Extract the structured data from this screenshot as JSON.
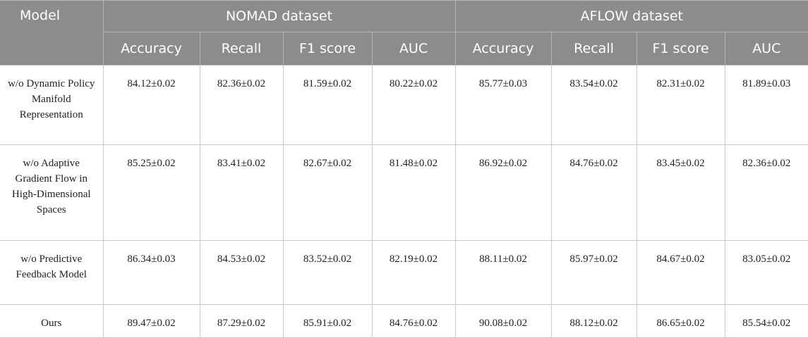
{
  "headers": {
    "model": "Model",
    "group1": "NOMAD dataset",
    "group2": "AFLOW dataset",
    "metrics": [
      "Accuracy",
      "Recall",
      "F1 score",
      "AUC",
      "Accuracy",
      "Recall",
      "F1 score",
      "AUC"
    ]
  },
  "rows": [
    {
      "model": "w/o Dynamic Policy Manifold Representation",
      "values": [
        "84.12±0.02",
        "82.36±0.02",
        "81.59±0.02",
        "80.22±0.02",
        "85.77±0.03",
        "83.54±0.02",
        "82.31±0.02",
        "81.89±0.03"
      ]
    },
    {
      "model": "w/o Adaptive Gradient Flow in High-Dimensional Spaces",
      "values": [
        "85.25±0.02",
        "83.41±0.02",
        "82.67±0.02",
        "81.48±0.02",
        "86.92±0.02",
        "84.76±0.02",
        "83.45±0.02",
        "82.36±0.02"
      ]
    },
    {
      "model": "w/o Predictive Feedback Model",
      "values": [
        "86.34±0.03",
        "84.53±0.02",
        "83.52±0.02",
        "82.19±0.02",
        "88.11±0.02",
        "85.97±0.02",
        "84.67±0.02",
        "83.05±0.02"
      ]
    },
    {
      "model": "Ours",
      "values": [
        "89.47±0.02",
        "87.29±0.02",
        "85.91±0.02",
        "84.76±0.02",
        "90.08±0.02",
        "88.12±0.02",
        "86.65±0.02",
        "85.54±0.02"
      ]
    }
  ]
}
